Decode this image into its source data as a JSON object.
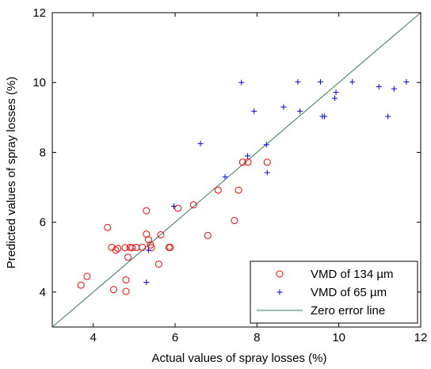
{
  "chart_data": {
    "type": "scatter",
    "xlabel": "Actual values of spray losses (%)",
    "ylabel": "Predicted values of spray losses (%)",
    "xlim": [
      3,
      12
    ],
    "ylim": [
      3,
      12
    ],
    "xticks": [
      4,
      6,
      8,
      10,
      12
    ],
    "yticks": [
      4,
      6,
      8,
      10,
      12
    ],
    "grid": false,
    "legend_position": "bottom-right",
    "series": [
      {
        "name": "VMD of 134 µm",
        "marker": "circle",
        "color": "#ff0000",
        "points": [
          [
            3.7,
            4.2
          ],
          [
            3.85,
            4.45
          ],
          [
            4.35,
            5.85
          ],
          [
            4.45,
            5.28
          ],
          [
            4.5,
            4.07
          ],
          [
            4.55,
            5.2
          ],
          [
            4.6,
            5.25
          ],
          [
            4.78,
            5.27
          ],
          [
            4.8,
            4.35
          ],
          [
            4.8,
            4.02
          ],
          [
            4.85,
            5.0
          ],
          [
            4.9,
            5.28
          ],
          [
            4.95,
            5.27
          ],
          [
            5.05,
            5.28
          ],
          [
            5.2,
            5.28
          ],
          [
            5.3,
            6.33
          ],
          [
            5.3,
            5.66
          ],
          [
            5.35,
            5.5
          ],
          [
            5.4,
            5.35
          ],
          [
            5.42,
            5.27
          ],
          [
            5.6,
            4.8
          ],
          [
            5.65,
            5.64
          ],
          [
            5.85,
            5.28
          ],
          [
            5.88,
            5.28
          ],
          [
            6.07,
            6.4
          ],
          [
            6.45,
            6.5
          ],
          [
            6.8,
            5.62
          ],
          [
            7.05,
            6.92
          ],
          [
            7.45,
            6.05
          ],
          [
            7.55,
            6.92
          ],
          [
            7.65,
            7.72
          ],
          [
            7.78,
            7.72
          ],
          [
            8.25,
            7.72
          ]
        ]
      },
      {
        "name": "VMD of 65 µm",
        "marker": "plus",
        "color": "#0000ff",
        "points": [
          [
            5.3,
            4.28
          ],
          [
            5.35,
            5.2
          ],
          [
            5.97,
            6.46
          ],
          [
            6.62,
            8.25
          ],
          [
            7.22,
            7.3
          ],
          [
            7.62,
            10.0
          ],
          [
            7.77,
            7.9
          ],
          [
            7.93,
            9.18
          ],
          [
            8.23,
            8.22
          ],
          [
            8.25,
            7.42
          ],
          [
            8.65,
            9.3
          ],
          [
            9.0,
            10.02
          ],
          [
            9.05,
            9.18
          ],
          [
            9.55,
            10.02
          ],
          [
            9.6,
            9.03
          ],
          [
            9.65,
            9.03
          ],
          [
            9.9,
            9.55
          ],
          [
            9.93,
            9.72
          ],
          [
            10.33,
            10.02
          ],
          [
            10.98,
            9.88
          ],
          [
            11.2,
            9.03
          ],
          [
            11.35,
            9.82
          ],
          [
            11.65,
            10.02
          ]
        ]
      },
      {
        "name": "Zero error line",
        "marker": "line",
        "color": "#3a7a5a",
        "points": [
          [
            3,
            3
          ],
          [
            12,
            12
          ]
        ]
      }
    ]
  }
}
